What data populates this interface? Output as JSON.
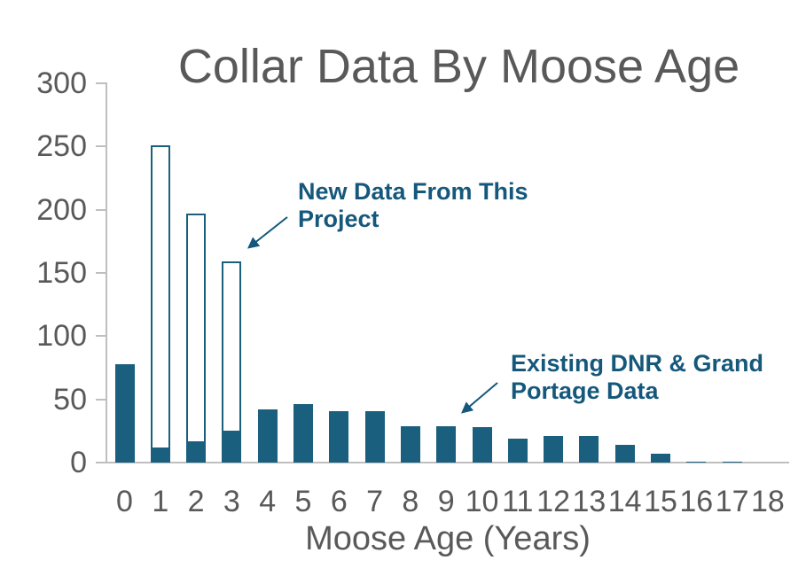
{
  "chart_data": {
    "type": "bar",
    "stacked": true,
    "title": "Collar Data By Moose Age",
    "xlabel": "Moose Age (Years)",
    "ylabel": "",
    "categories": [
      "0",
      "1",
      "2",
      "3",
      "4",
      "5",
      "6",
      "7",
      "8",
      "9",
      "10",
      "11",
      "12",
      "13",
      "14",
      "15",
      "16",
      "17",
      "18"
    ],
    "ylim": [
      0,
      300
    ],
    "y_ticks": [
      0,
      50,
      100,
      150,
      200,
      250,
      300
    ],
    "grid": false,
    "legend": "none",
    "series": [
      {
        "name": "Existing DNR & Grand Portage Data",
        "render": "solid",
        "values": [
          78,
          12,
          17,
          25,
          42,
          46,
          41,
          41,
          29,
          29,
          28,
          19,
          21,
          21,
          14,
          7,
          1,
          1,
          0
        ]
      },
      {
        "name": "New Data From This Project",
        "render": "outline",
        "values": [
          0,
          239,
          180,
          134,
          0,
          0,
          0,
          0,
          0,
          0,
          0,
          0,
          0,
          0,
          0,
          0,
          0,
          0,
          0
        ]
      }
    ],
    "annotations": [
      {
        "text": "New Data From This\nProject",
        "points_to": "top of age-3 outlined bar"
      },
      {
        "text": "Existing DNR & Grand\nPortage Data",
        "points_to": "top of age-9 bar"
      }
    ],
    "colors": {
      "bar": "#1B5F7F",
      "annotation_text": "#15587B",
      "axis_line": "#BFBFBF",
      "label_text": "#595959",
      "title_text": "#595959"
    }
  }
}
